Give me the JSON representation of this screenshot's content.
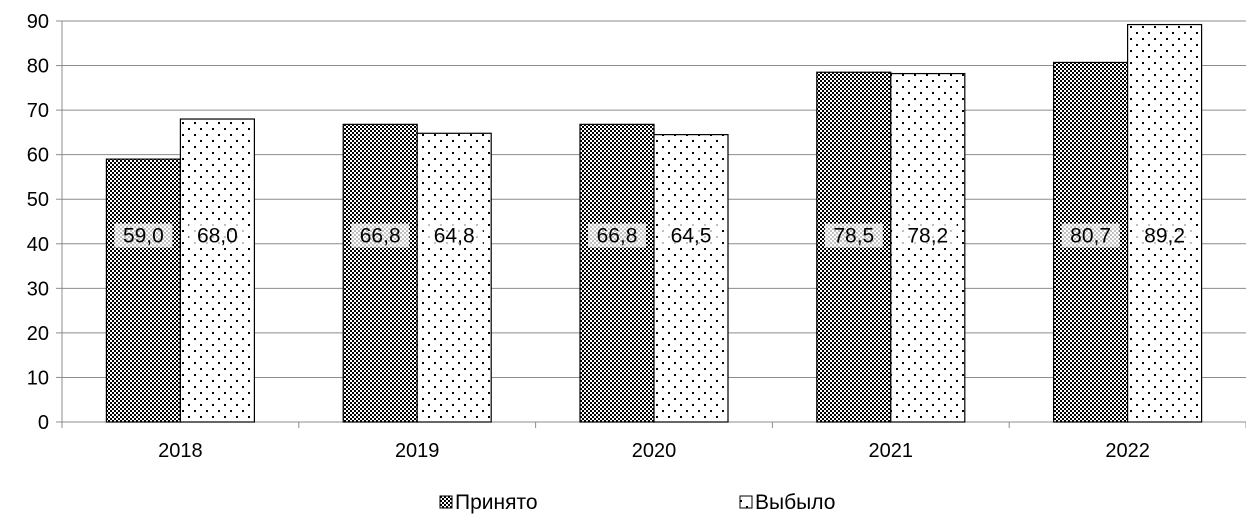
{
  "chart_data": {
    "type": "bar",
    "categories": [
      "2018",
      "2019",
      "2020",
      "2021",
      "2022"
    ],
    "series": [
      {
        "name": "Принято",
        "values": [
          59.0,
          66.8,
          66.8,
          78.5,
          80.7
        ],
        "labels": [
          "59,0",
          "66,8",
          "66,8",
          "78,5",
          "80,7"
        ],
        "pattern": "dense-dots"
      },
      {
        "name": "Выбыло",
        "values": [
          68.0,
          64.8,
          64.5,
          78.2,
          89.2
        ],
        "labels": [
          "68,0",
          "64,8",
          "64,5",
          "78,2",
          "89,2"
        ],
        "pattern": "sparse-dots"
      }
    ],
    "title": "",
    "xlabel": "",
    "ylabel": "",
    "ylim": [
      0,
      90
    ],
    "yticks": [
      0,
      10,
      20,
      30,
      40,
      50,
      60,
      70,
      80,
      90
    ],
    "grid": true,
    "legend": "bottom-center"
  },
  "colors": {
    "bar_outline": "#000000",
    "grid": "#8c8c8c",
    "dot": "#000000",
    "background": "#ffffff"
  }
}
